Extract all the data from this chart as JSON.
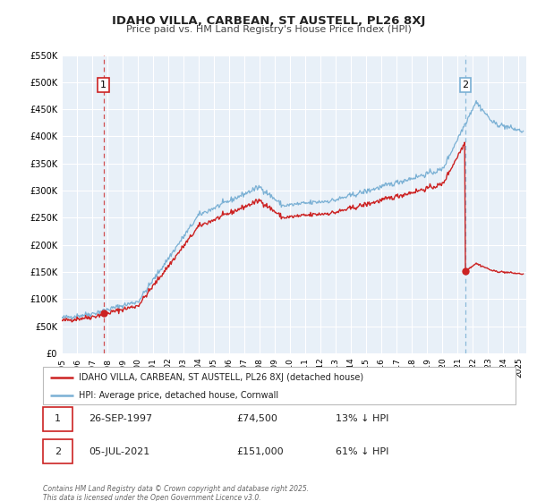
{
  "title": "IDAHO VILLA, CARBEAN, ST AUSTELL, PL26 8XJ",
  "subtitle": "Price paid vs. HM Land Registry's House Price Index (HPI)",
  "hpi_color": "#7ab0d4",
  "price_color": "#cc2222",
  "vline1_color": "#cc3333",
  "vline2_color": "#7ab0d4",
  "background_color": "#ffffff",
  "chart_bg": "#e8f0f8",
  "grid_color": "#ffffff",
  "sale1_year": 1997.74,
  "sale1_price": 74500,
  "sale2_year": 2021.5,
  "sale2_price": 151000,
  "legend_label1": "IDAHO VILLA, CARBEAN, ST AUSTELL, PL26 8XJ (detached house)",
  "legend_label2": "HPI: Average price, detached house, Cornwall",
  "annotation1_label": "1",
  "annotation2_label": "2",
  "table1_num": "1",
  "table1_date": "26-SEP-1997",
  "table1_price": "£74,500",
  "table1_hpi": "13% ↓ HPI",
  "table2_num": "2",
  "table2_date": "05-JUL-2021",
  "table2_price": "£151,000",
  "table2_hpi": "61% ↓ HPI",
  "footer": "Contains HM Land Registry data © Crown copyright and database right 2025.\nThis data is licensed under the Open Government Licence v3.0.",
  "ylim_max": 550000,
  "xlim_start": 1995.0,
  "xlim_end": 2025.5
}
